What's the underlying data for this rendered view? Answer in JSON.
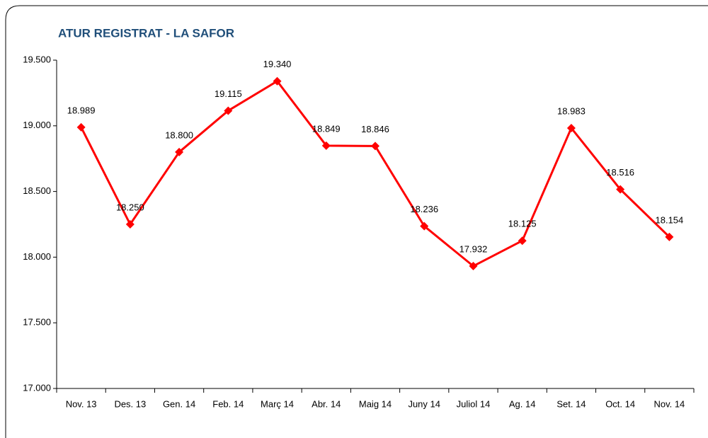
{
  "chart_data": {
    "type": "line",
    "title": "ATUR REGISTRAT - LA SAFOR",
    "categories": [
      "Nov. 13",
      "Des. 13",
      "Gen. 14",
      "Feb. 14",
      "Març 14",
      "Abr. 14",
      "Maig 14",
      "Juny 14",
      "Juliol 14",
      "Ag. 14",
      "Set. 14",
      "Oct. 14",
      "Nov. 14"
    ],
    "series": [
      {
        "name": "ATUR REGISTRAT - LA SAFOR",
        "color": "#ff0000",
        "values": [
          18989,
          18250,
          18800,
          19115,
          19340,
          18849,
          18846,
          18236,
          17932,
          18125,
          18983,
          18516,
          18154
        ],
        "value_labels": [
          "18.989",
          "18.250",
          "18.800",
          "19.115",
          "19.340",
          "18.849",
          "18.846",
          "18.236",
          "17.932",
          "18.125",
          "18.983",
          "18.516",
          "18.154"
        ]
      }
    ],
    "ylim": [
      17000,
      19500
    ],
    "yticks": [
      {
        "value": 17000,
        "label": "17.000"
      },
      {
        "value": 17500,
        "label": "17.500"
      },
      {
        "value": 18000,
        "label": "18.000"
      },
      {
        "value": 18500,
        "label": "18.500"
      },
      {
        "value": 19000,
        "label": "19.000"
      },
      {
        "value": 19500,
        "label": "19.500"
      }
    ],
    "grid": false
  }
}
